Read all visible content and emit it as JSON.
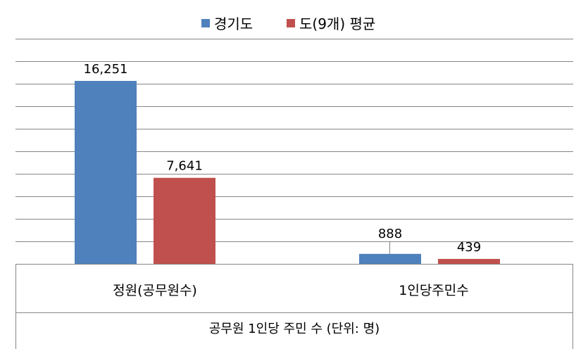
{
  "chart_data": {
    "type": "bar",
    "categories": [
      "정원(공무원수)",
      "1인당주민수"
    ],
    "series": [
      {
        "name": "경기도",
        "values": [
          16251,
          888
        ],
        "labels": [
          "16,251",
          "888"
        ],
        "color": "#4F81BD"
      },
      {
        "name": "도(9개) 평균",
        "values": [
          7641,
          439
        ],
        "labels": [
          "7,641",
          "439"
        ],
        "color": "#C0504D"
      }
    ],
    "xlabel": "공무원 1인당 주민 수 (단위: 명)",
    "ylim": [
      0,
      20000
    ],
    "grid": true,
    "legend": "top",
    "gridline_color": "#868686"
  }
}
